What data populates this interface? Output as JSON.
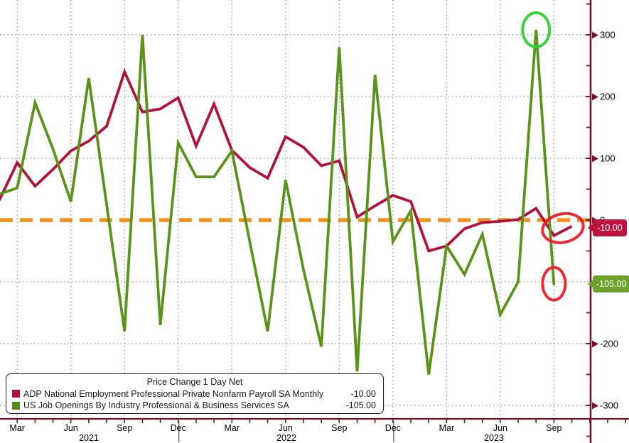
{
  "chart_data": {
    "type": "line",
    "title": "Price Change 1 Day Net",
    "x_months": [
      "Feb 2021",
      "Mar 2021",
      "Apr 2021",
      "May 2021",
      "Jun 2021",
      "Jul 2021",
      "Aug 2021",
      "Sep 2021",
      "Oct 2021",
      "Nov 2021",
      "Dec 2021",
      "Jan 2022",
      "Feb 2022",
      "Mar 2022",
      "Apr 2022",
      "May 2022",
      "Jun 2022",
      "Jul 2022",
      "Aug 2022",
      "Sep 2022",
      "Oct 2022",
      "Nov 2022",
      "Dec 2022",
      "Jan 2023",
      "Feb 2023",
      "Mar 2023",
      "Apr 2023",
      "May 2023",
      "Jun 2023",
      "Jul 2023",
      "Aug 2023",
      "Sep 2023",
      "Oct 2023"
    ],
    "series": [
      {
        "name": "ADP National Employment Professional Private Nonfarm Payroll SA Monthly",
        "color": "#b11238",
        "last_value": -10.0,
        "values": [
          32,
          93,
          55,
          82,
          112,
          128,
          152,
          240,
          175,
          180,
          198,
          120,
          188,
          113,
          85,
          68,
          135,
          118,
          88,
          96,
          5,
          23,
          40,
          30,
          -50,
          -42,
          -14,
          -4,
          -2,
          1,
          19,
          -25,
          -10
        ]
      },
      {
        "name": "US Job Openings By Industry Professional & Business Services SA",
        "color": "#5a921a",
        "last_value": -105.0,
        "values": [
          42,
          52,
          190,
          115,
          30,
          230,
          25,
          -180,
          300,
          -170,
          125,
          70,
          70,
          112,
          -35,
          -180,
          65,
          -80,
          -205,
          280,
          -245,
          235,
          -35,
          15,
          -250,
          -42,
          -88,
          -23,
          -153,
          -100,
          308,
          -105,
          null
        ]
      }
    ],
    "ylim": [
      -355,
      360
    ],
    "grid": "dotted",
    "y_gridline_values": [
      300,
      200,
      100,
      -100,
      -200,
      -300
    ],
    "zero_line": {
      "value": 0,
      "color": "#f2911d",
      "style": "dashed"
    },
    "legend_position": "bottom-left",
    "annotations": [
      {
        "shape": "ellipse",
        "color": "#2ed22e",
        "month_index": 30,
        "value": 308,
        "rx": 19,
        "ry": 24,
        "rotate": 0,
        "note": "circles green spike high"
      },
      {
        "shape": "ellipse",
        "color": "#e81d2a",
        "month_index": 31.5,
        "value": -13,
        "rx": 29,
        "ry": 20,
        "rotate": -12,
        "note": "circles red line end"
      },
      {
        "shape": "ellipse",
        "color": "#e81d2a",
        "month_index": 31,
        "value": -103,
        "rx": 16,
        "ry": 23,
        "rotate": 0,
        "note": "circles green line end"
      }
    ]
  },
  "axis": {
    "y_ticks": [
      {
        "value": 300,
        "label": "300"
      },
      {
        "value": 200,
        "label": "200"
      },
      {
        "value": 100,
        "label": "100"
      },
      {
        "value": 0,
        "label": "0"
      },
      {
        "value": -200,
        "label": "-200"
      },
      {
        "value": -300,
        "label": "-300"
      }
    ],
    "y_minor_tick_values": [
      350,
      250,
      150,
      50,
      -50,
      -150,
      -250,
      -350
    ],
    "x_ticks": [
      {
        "label": "Mar",
        "month_index": 1
      },
      {
        "label": "Jun",
        "month_index": 4
      },
      {
        "label": "Sep",
        "month_index": 7
      },
      {
        "label": "Dec",
        "month_index": 10
      },
      {
        "label": "Mar",
        "month_index": 13
      },
      {
        "label": "Jun",
        "month_index": 16
      },
      {
        "label": "Sep",
        "month_index": 19
      },
      {
        "label": "Dec",
        "month_index": 22
      },
      {
        "label": "Mar",
        "month_index": 25
      },
      {
        "label": "Jun",
        "month_index": 28
      },
      {
        "label": "Sep",
        "month_index": 31
      }
    ],
    "years": [
      {
        "label": "2021",
        "x": 125
      },
      {
        "label": "2022",
        "x": 403
      },
      {
        "label": "2023",
        "x": 695
      }
    ],
    "year_separator_month_indices": [
      10,
      22
    ],
    "axis_color": "#7a1226",
    "grid_color": "#888888"
  },
  "badges": [
    {
      "text": "-10.00",
      "bg": "#c01240",
      "value": -13
    },
    {
      "text": "-105.00",
      "bg": "#6da32a",
      "value": -103
    }
  ],
  "legend": {
    "title": "Price Change 1 Day Net",
    "rows": [
      {
        "label": "ADP National Employment Professional Private Nonfarm Payroll SA Monthly",
        "value": "-10.00",
        "color": "#b11238"
      },
      {
        "label": "US Job Openings By Industry Professional & Business Services SA",
        "value": "-105.00",
        "color": "#4e8c16"
      }
    ]
  }
}
